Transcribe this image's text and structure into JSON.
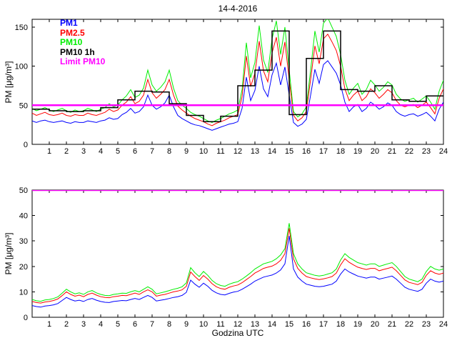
{
  "figure": {
    "title": "14-4-2016"
  },
  "chart_data": [
    {
      "type": "line",
      "title": "14-4-2016",
      "ylabel": "PM [μg/m³]",
      "xlabel": "",
      "xlim": [
        0,
        24
      ],
      "ylim": [
        0,
        160
      ],
      "xticks": [
        1,
        2,
        3,
        4,
        5,
        6,
        7,
        8,
        9,
        10,
        11,
        12,
        13,
        14,
        15,
        16,
        17,
        18,
        19,
        20,
        21,
        22,
        23,
        24
      ],
      "yticks": [
        0,
        50,
        100,
        150
      ],
      "grid": false,
      "legend_position": "top-left",
      "x_sample_interval_hours": 0.25,
      "series": [
        {
          "name": "PM1",
          "color": "#0000ff",
          "style": "line",
          "values": [
            30,
            28,
            30,
            31,
            29,
            28,
            29,
            30,
            28,
            27,
            29,
            28,
            28,
            30,
            29,
            28,
            30,
            31,
            34,
            32,
            33,
            38,
            41,
            46,
            40,
            42,
            48,
            63,
            50,
            45,
            48,
            53,
            63,
            48,
            37,
            33,
            30,
            27,
            25,
            24,
            22,
            20,
            18,
            20,
            22,
            24,
            26,
            27,
            29,
            46,
            86,
            56,
            69,
            100,
            71,
            61,
            89,
            104,
            76,
            99,
            63,
            28,
            23,
            26,
            32,
            63,
            96,
            78,
            102,
            107,
            99,
            91,
            76,
            54,
            42,
            48,
            51,
            42,
            46,
            54,
            50,
            45,
            48,
            53,
            50,
            42,
            38,
            36,
            38,
            39,
            36,
            38,
            41,
            36,
            30,
            45,
            54
          ]
        },
        {
          "name": "PM2.5",
          "color": "#ff0000",
          "style": "line",
          "values": [
            40,
            37,
            39,
            41,
            38,
            37,
            38,
            40,
            37,
            36,
            38,
            37,
            37,
            40,
            38,
            37,
            39,
            41,
            45,
            42,
            44,
            50,
            54,
            61,
            52,
            55,
            63,
            83,
            66,
            59,
            64,
            70,
            83,
            63,
            49,
            44,
            40,
            36,
            33,
            31,
            29,
            26,
            24,
            27,
            29,
            31,
            34,
            36,
            38,
            61,
            113,
            74,
            91,
            132,
            94,
            80,
            117,
            137,
            100,
            131,
            83,
            37,
            30,
            34,
            42,
            83,
            126,
            103,
            135,
            141,
            131,
            120,
            100,
            71,
            56,
            63,
            68,
            56,
            61,
            71,
            66,
            59,
            64,
            70,
            66,
            56,
            50,
            48,
            50,
            51,
            47,
            50,
            54,
            47,
            39,
            59,
            71
          ]
        },
        {
          "name": "PM10",
          "color": "#00ee00",
          "style": "line",
          "values": [
            46,
            43,
            45,
            47,
            44,
            42,
            44,
            46,
            43,
            41,
            44,
            42,
            43,
            46,
            44,
            42,
            45,
            47,
            52,
            48,
            50,
            57,
            62,
            70,
            60,
            63,
            72,
            95,
            76,
            68,
            73,
            80,
            95,
            72,
            56,
            50,
            46,
            41,
            38,
            36,
            33,
            30,
            28,
            31,
            33,
            36,
            39,
            41,
            44,
            70,
            130,
            85,
            105,
            152,
            108,
            92,
            135,
            158,
            115,
            150,
            95,
            42,
            35,
            39,
            48,
            95,
            145,
            118,
            155,
            162,
            150,
            138,
            115,
            82,
            64,
            72,
            78,
            64,
            70,
            82,
            76,
            68,
            73,
            80,
            76,
            64,
            58,
            55,
            57,
            59,
            54,
            58,
            62,
            54,
            45,
            68,
            82
          ]
        },
        {
          "name": "PM10 1h",
          "color": "#000000",
          "style": "step-hourly",
          "values": [
            45,
            43,
            42,
            43,
            47,
            57,
            68,
            67,
            52,
            37,
            29,
            36,
            75,
            95,
            145,
            38,
            110,
            145,
            70,
            68,
            75,
            57,
            55,
            62
          ]
        },
        {
          "name": "Limit PM10",
          "color": "#ff00ff",
          "style": "hline",
          "value": 50
        }
      ]
    },
    {
      "type": "line",
      "title": "",
      "ylabel": "PM [μg/m³]",
      "xlabel": "Godzina UTC",
      "xlim": [
        0,
        24
      ],
      "ylim": [
        0,
        50
      ],
      "xticks": [
        1,
        2,
        3,
        4,
        5,
        6,
        7,
        8,
        9,
        10,
        11,
        12,
        13,
        14,
        15,
        16,
        17,
        18,
        19,
        20,
        21,
        22,
        23,
        24
      ],
      "yticks": [
        0,
        10,
        20,
        30,
        40,
        50
      ],
      "grid": false,
      "x_sample_interval_hours": 0.25,
      "series": [
        {
          "name": "PM1",
          "color": "#0000ff",
          "style": "line",
          "values": [
            4.6,
            4.2,
            4,
            4.4,
            4.6,
            4.9,
            5.4,
            6.6,
            7.8,
            7,
            6.4,
            6.7,
            6.2,
            7,
            7.4,
            6.7,
            6.2,
            5.9,
            5.8,
            6.2,
            6.4,
            6.6,
            6.5,
            7,
            7.4,
            7,
            7.8,
            8.6,
            7.8,
            6.4,
            6.7,
            7,
            7.4,
            7.8,
            8.1,
            8.6,
            9.8,
            14.6,
            13,
            11.8,
            13.4,
            12.2,
            10.6,
            9.6,
            9,
            8.8,
            9.4,
            9.9,
            10.2,
            11,
            12,
            13,
            14.2,
            15,
            15.8,
            16.2,
            16.6,
            17.4,
            18.6,
            21,
            32,
            19,
            15.8,
            14.2,
            13,
            12.6,
            12.2,
            12,
            12.2,
            12.6,
            13,
            14.2,
            17,
            19,
            17.8,
            17,
            16.2,
            15.8,
            15.4,
            15.8,
            15.8,
            15,
            15.4,
            15.8,
            16.2,
            15,
            13.4,
            11.8,
            11,
            10.6,
            10.2,
            11,
            13.4,
            15,
            14.2,
            13.8,
            14.2
          ]
        },
        {
          "name": "PM2.5",
          "color": "#ff0000",
          "style": "line",
          "values": [
            6.2,
            5.8,
            5.6,
            6,
            6.2,
            6.6,
            7.2,
            8.5,
            10,
            9,
            8.3,
            8.7,
            8.1,
            9,
            9.5,
            8.7,
            8.1,
            7.8,
            7.7,
            8.1,
            8.3,
            8.6,
            8.5,
            9,
            9.5,
            9,
            10,
            10.8,
            10,
            8.3,
            8.7,
            9,
            9.5,
            10,
            10.3,
            10.8,
            12.2,
            17.8,
            16,
            14.5,
            16.4,
            15,
            13.2,
            12,
            11.3,
            11,
            11.8,
            12.3,
            12.7,
            13.6,
            14.8,
            16,
            17.4,
            18.3,
            19.2,
            19.7,
            20.1,
            21,
            22.4,
            25,
            35,
            23,
            19.2,
            17.4,
            16,
            15.5,
            15.1,
            14.8,
            15.1,
            15.5,
            16,
            17.4,
            20.6,
            23,
            21.6,
            20.6,
            19.7,
            19.2,
            18.8,
            19.2,
            19.2,
            18.3,
            18.8,
            19.2,
            19.7,
            18.3,
            16.5,
            14.7,
            13.7,
            13.3,
            12.8,
            13.7,
            16.5,
            18.3,
            17.4,
            16.9,
            17.4
          ]
        },
        {
          "name": "PM10",
          "color": "#00ee00",
          "style": "line",
          "values": [
            7,
            6.5,
            6.3,
            6.8,
            7,
            7.4,
            8,
            9.5,
            11,
            10,
            9.2,
            9.6,
            9,
            10,
            10.5,
            9.6,
            9,
            8.6,
            8.5,
            9,
            9.2,
            9.5,
            9.4,
            10,
            10.5,
            10,
            11,
            12,
            11,
            9.2,
            9.6,
            10,
            10.5,
            11,
            11.4,
            12,
            13.5,
            19.5,
            17.5,
            16,
            18,
            16.5,
            14.5,
            13.2,
            12.5,
            12.2,
            13,
            13.6,
            14,
            15,
            16.2,
            17.5,
            19,
            20,
            21,
            21.5,
            22,
            23,
            24.5,
            27,
            37,
            25,
            21,
            19,
            17.5,
            17,
            16.5,
            16.2,
            16.5,
            17,
            17.5,
            19,
            22.5,
            25,
            23.5,
            22.5,
            21.5,
            21,
            20.5,
            21,
            21,
            20,
            20.5,
            21,
            21.5,
            20,
            18,
            16,
            15,
            14.5,
            14,
            15,
            18,
            20,
            19,
            18.5,
            19
          ]
        },
        {
          "name": "Limit PM10",
          "color": "#ff00ff",
          "style": "hline",
          "value": 50
        }
      ]
    }
  ]
}
